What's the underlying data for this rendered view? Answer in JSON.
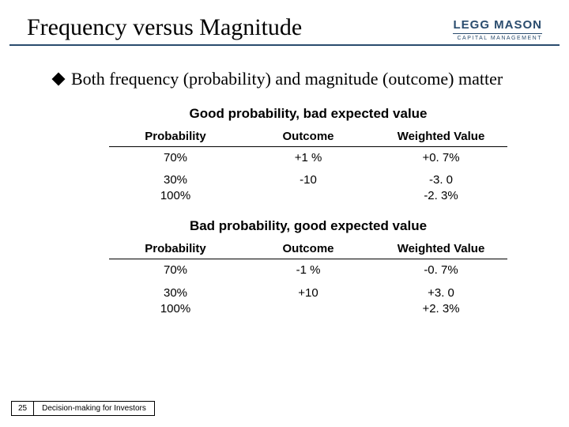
{
  "header": {
    "title": "Frequency versus Magnitude",
    "logo_main": "LEGG MASON",
    "logo_sub": "CAPITAL MANAGEMENT"
  },
  "bullet": "Both frequency (probability) and magnitude (outcome) matter",
  "tables": [
    {
      "title": "Good probability, bad expected value",
      "headers": [
        "Probability",
        "Outcome",
        "Weighted Value"
      ],
      "rows": [
        [
          "70%",
          "+1 %",
          "+0. 7%"
        ],
        [
          "30%\n100%",
          "-10",
          "-3. 0\n-2. 3%"
        ]
      ]
    },
    {
      "title": "Bad probability, good expected value",
      "headers": [
        "Probability",
        "Outcome",
        "Weighted Value"
      ],
      "rows": [
        [
          "70%",
          "-1 %",
          "-0. 7%"
        ],
        [
          "30%\n100%",
          "+10",
          "+3. 0\n+2. 3%"
        ]
      ]
    }
  ],
  "footer": {
    "page": "25",
    "text": "Decision-making for Investors"
  },
  "colors": {
    "rule": "#2a4c6e",
    "text": "#000000",
    "background": "#ffffff"
  }
}
